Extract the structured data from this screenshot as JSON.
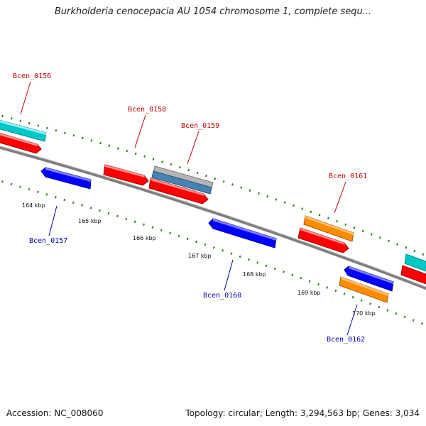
{
  "title": "Burkholderia cenocepacia AU 1054 chromosome 1, complete sequ...",
  "footer": {
    "accession": "Accession: NC_008060",
    "summary": "Topology: circular; Length: 3,294,563 bp; Genes: 3,034"
  },
  "colors": {
    "backbone": "#808080",
    "tick_mark": "#2e7d1e",
    "forward_gene": "#ff0000",
    "reverse_gene": "#0000ff",
    "label_forward": "#c00000",
    "label_reverse": "#0000b0",
    "cyan_gene": "#00c8c8",
    "orange_gene": "#ff8c00",
    "gray_gene": "#b0b0b0",
    "steel_gene": "#4682b4"
  },
  "scale": {
    "unit": "kbp",
    "ticks": [
      {
        "label": "164 kbp"
      },
      {
        "label": "165 kbp"
      },
      {
        "label": "166 kbp"
      },
      {
        "label": "167 kbp"
      },
      {
        "label": "168 kbp"
      },
      {
        "label": "169 kbp"
      },
      {
        "label": "170 kbp"
      }
    ]
  },
  "genes": [
    {
      "name": "Bcen_0156",
      "strand": "forward"
    },
    {
      "name": "Bcen_0157",
      "strand": "reverse"
    },
    {
      "name": "Bcen_0158",
      "strand": "forward"
    },
    {
      "name": "Bcen_0159",
      "strand": "forward"
    },
    {
      "name": "Bcen_0160",
      "strand": "reverse"
    },
    {
      "name": "Bcen_0161",
      "strand": "forward"
    },
    {
      "name": "Bcen_0162",
      "strand": "reverse"
    }
  ]
}
